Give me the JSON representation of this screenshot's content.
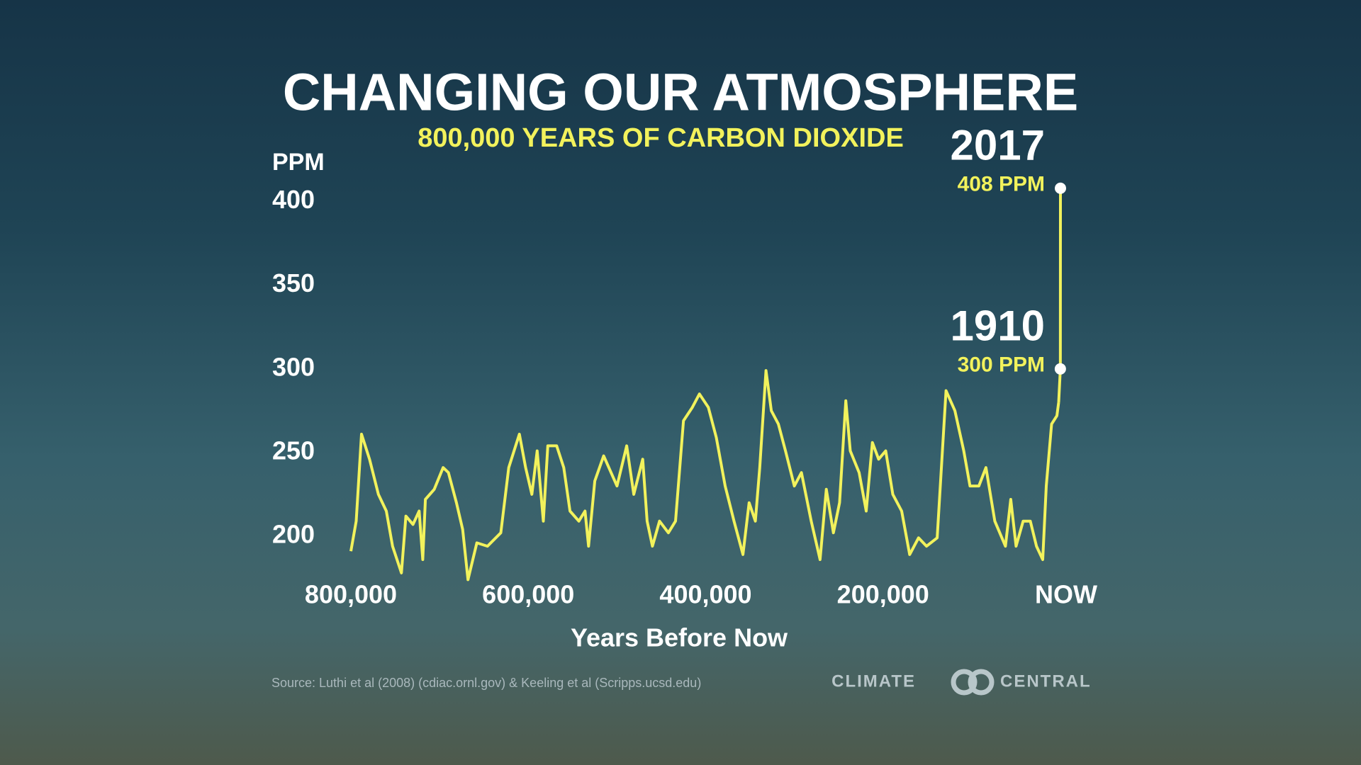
{
  "chart_data": {
    "type": "line",
    "title": "CHANGING OUR ATMOSPHERE",
    "subtitle": "800,000 YEARS OF CARBON DIOXIDE",
    "y_label": "PPM",
    "x_label": "Years Before Now",
    "source": "Source: Luthi et al (2008) (cdiac.ornl.gov) & Keeling et al (Scripps.ucsd.edu)",
    "logo": [
      "CLIMATE",
      "CENTRAL"
    ],
    "color": "#f2f25c",
    "xlim": [
      800000,
      0
    ],
    "ylim": [
      175,
      410
    ],
    "yticks": [
      200,
      250,
      300,
      350,
      400
    ],
    "xticks": [
      {
        "value": 800000,
        "label": "800,000"
      },
      {
        "value": 600000,
        "label": "600,000"
      },
      {
        "value": 400000,
        "label": "400,000"
      },
      {
        "value": 200000,
        "label": "200,000"
      },
      {
        "value": 0,
        "label": "NOW"
      }
    ],
    "x": [
      800000,
      794000,
      788000,
      779000,
      769000,
      760000,
      753000,
      743000,
      738000,
      730000,
      723000,
      719000,
      716000,
      706000,
      696000,
      690000,
      681000,
      674000,
      668000,
      658000,
      646000,
      631000,
      622000,
      610000,
      603000,
      596000,
      590000,
      583000,
      578000,
      568000,
      560000,
      553000,
      543000,
      536000,
      532000,
      525000,
      515000,
      500000,
      489000,
      481000,
      471000,
      466000,
      460000,
      452000,
      442000,
      434000,
      425000,
      415000,
      407000,
      397000,
      388000,
      378000,
      368000,
      358000,
      351000,
      344000,
      339000,
      332000,
      326000,
      318000,
      310000,
      300000,
      292000,
      281000,
      271000,
      264000,
      256000,
      249000,
      242000,
      237000,
      227000,
      219000,
      212000,
      205000,
      197000,
      189000,
      179000,
      170000,
      160000,
      151000,
      139000,
      129000,
      119000,
      109000,
      102000,
      92000,
      84000,
      74000,
      62000,
      56000,
      50000,
      42000,
      34000,
      27000,
      20000,
      16000,
      10000,
      4000,
      2000
    ],
    "values": [
      191,
      209,
      261,
      246,
      225,
      215,
      194,
      178,
      212,
      207,
      215,
      186,
      222,
      228,
      241,
      238,
      220,
      204,
      174,
      196,
      194,
      202,
      241,
      261,
      241,
      225,
      251,
      209,
      254,
      254,
      241,
      215,
      209,
      215,
      194,
      233,
      248,
      230,
      254,
      225,
      246,
      209,
      194,
      209,
      202,
      209,
      269,
      277,
      285,
      277,
      259,
      230,
      209,
      189,
      220,
      209,
      241,
      299,
      275,
      267,
      251,
      230,
      238,
      209,
      186,
      228,
      202,
      220,
      281,
      251,
      238,
      215,
      256,
      246,
      251,
      225,
      215,
      189,
      199,
      194,
      199,
      287,
      275,
      251,
      230,
      230,
      241,
      209,
      194,
      222,
      194,
      209,
      209,
      194,
      186,
      230,
      267,
      272,
      280
    ],
    "annotations": [
      {
        "label": "1910",
        "x": 107,
        "value": 300,
        "value_label": "300 PPM"
      },
      {
        "label": "2017",
        "x": 0,
        "value": 408,
        "value_label": "408 PPM"
      }
    ]
  }
}
